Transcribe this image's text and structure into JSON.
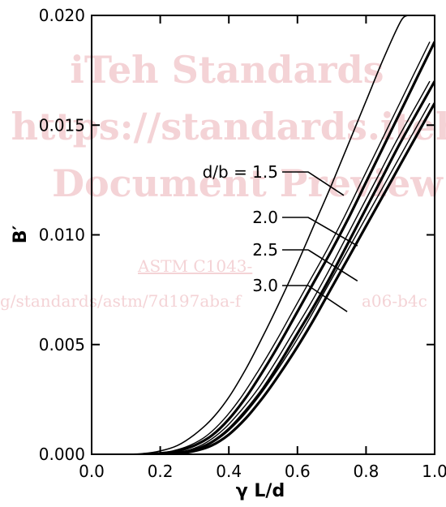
{
  "watermark": {
    "line1": "iTeh Standards",
    "line2": "https://standards.iteh.",
    "line3": "Document Preview",
    "line4": "ASTM C1043-",
    "line5": "g/standards/astm/7d197aba-f",
    "line6": "a06-b4c",
    "color": "#f4d3d6"
  },
  "chart_data": {
    "type": "line",
    "xlabel": "γ L/d",
    "ylabel": "B′",
    "xlim": [
      0.0,
      1.0
    ],
    "ylim": [
      0.0,
      0.02
    ],
    "x_ticks": [
      "0.0",
      "0.2",
      "0.4",
      "0.6",
      "0.8",
      "1.0"
    ],
    "y_ticks": [
      "0.000",
      "0.005",
      "0.010",
      "0.015",
      "0.020"
    ],
    "grid": false,
    "line_color": "#000000",
    "series": [
      {
        "name": "d/b = 1.5",
        "x": [
          0.1,
          0.15,
          0.2,
          0.25,
          0.3,
          0.35,
          0.4,
          0.45,
          0.5,
          0.55,
          0.6,
          0.65,
          0.7,
          0.75,
          0.8,
          0.85,
          0.9,
          0.92
        ],
        "y": [
          0.0,
          3e-05,
          0.00015,
          0.0004,
          0.0009,
          0.0016,
          0.0026,
          0.0039,
          0.0054,
          0.007,
          0.0087,
          0.0105,
          0.0123,
          0.0142,
          0.0161,
          0.018,
          0.0197,
          0.02
        ]
      },
      {
        "name": "2.0",
        "x": [
          0.15,
          0.2,
          0.25,
          0.3,
          0.35,
          0.4,
          0.45,
          0.5,
          0.55,
          0.6,
          0.65,
          0.7,
          0.75,
          0.8,
          0.85,
          0.9,
          0.95,
          1.0
        ],
        "y": [
          0.0,
          4e-05,
          0.00015,
          0.0004,
          0.00085,
          0.0016,
          0.0026,
          0.0038,
          0.0051,
          0.0065,
          0.0079,
          0.0093,
          0.0108,
          0.0124,
          0.014,
          0.0156,
          0.0172,
          0.0188
        ]
      },
      {
        "name": "2.5",
        "x": [
          0.2,
          0.25,
          0.3,
          0.35,
          0.4,
          0.45,
          0.5,
          0.55,
          0.6,
          0.65,
          0.7,
          0.75,
          0.8,
          0.85,
          0.9,
          0.95,
          1.0
        ],
        "y": [
          0.0,
          6e-05,
          0.0002,
          0.00055,
          0.00115,
          0.002,
          0.003,
          0.0042,
          0.0055,
          0.0068,
          0.0082,
          0.0097,
          0.0112,
          0.0127,
          0.0142,
          0.0156,
          0.017
        ]
      },
      {
        "name": "3.0",
        "x": [
          0.22,
          0.25,
          0.3,
          0.35,
          0.4,
          0.45,
          0.5,
          0.55,
          0.6,
          0.65,
          0.7,
          0.75,
          0.8,
          0.85,
          0.9,
          0.95,
          1.0
        ],
        "y": [
          0.0,
          3e-05,
          0.00015,
          0.0004,
          0.0009,
          0.00165,
          0.0026,
          0.0037,
          0.0049,
          0.0062,
          0.0076,
          0.009,
          0.0104,
          0.0118,
          0.0132,
          0.0146,
          0.016
        ]
      }
    ],
    "annotations": [
      {
        "text": "d/b = 1.5",
        "points_to_x": 0.735,
        "points_to_y": 0.0118
      },
      {
        "text": "2.0",
        "points_to_x": 0.775,
        "points_to_y": 0.0095
      },
      {
        "text": "2.5",
        "points_to_x": 0.775,
        "points_to_y": 0.0079
      },
      {
        "text": "3.0",
        "points_to_x": 0.745,
        "points_to_y": 0.0065
      }
    ]
  }
}
